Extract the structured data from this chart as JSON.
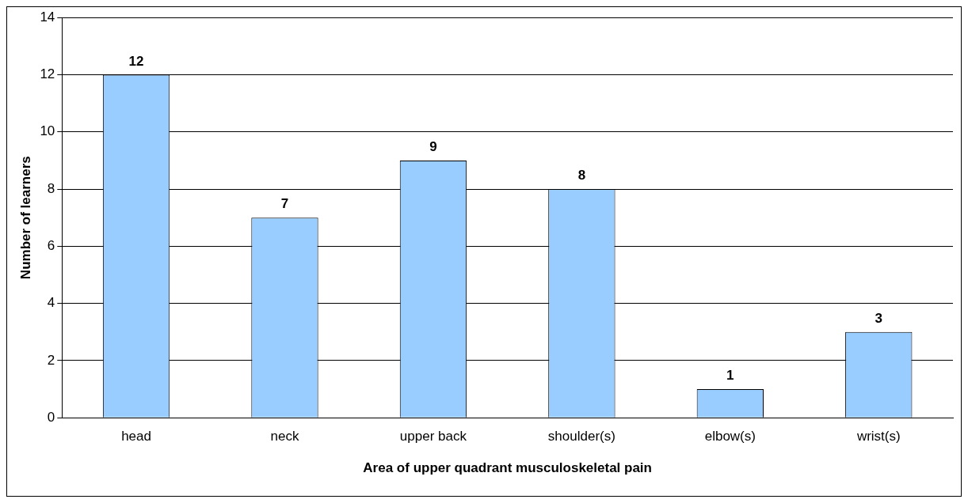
{
  "chart_data": {
    "type": "bar",
    "xlabel": "Area of upper quadrant musculoskeletal pain",
    "ylabel": "Number of learners",
    "categories": [
      "head",
      "neck",
      "upper back",
      "shoulder(s)",
      "elbow(s)",
      "wrist(s)"
    ],
    "values": [
      12,
      7,
      9,
      8,
      1,
      3
    ],
    "color": "#99ccff",
    "ylim": [
      0,
      14
    ],
    "yticks": [
      0,
      2,
      4,
      6,
      8,
      10,
      12,
      14
    ],
    "grid": "y",
    "data_labels": true,
    "legend": false
  }
}
